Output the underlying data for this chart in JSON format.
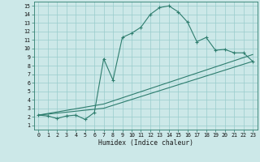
{
  "xlabel": "Humidex (Indice chaleur)",
  "bg_color": "#cce8e8",
  "line_color": "#2e7d6e",
  "grid_color": "#99cccc",
  "xlim": [
    -0.5,
    23.5
  ],
  "ylim": [
    0.5,
    15.5
  ],
  "xticks": [
    0,
    1,
    2,
    3,
    4,
    5,
    6,
    7,
    8,
    9,
    10,
    11,
    12,
    13,
    14,
    15,
    16,
    17,
    18,
    19,
    20,
    21,
    22,
    23
  ],
  "yticks": [
    1,
    2,
    3,
    4,
    5,
    6,
    7,
    8,
    9,
    10,
    11,
    12,
    13,
    14,
    15
  ],
  "curve1_x": [
    0,
    1,
    2,
    3,
    4,
    5,
    6,
    7,
    8,
    9,
    10,
    11,
    12,
    13,
    14,
    15,
    16,
    17,
    18,
    19,
    20,
    21,
    22,
    23
  ],
  "curve1_y": [
    2.2,
    2.1,
    1.8,
    2.1,
    2.2,
    1.7,
    2.5,
    8.8,
    6.3,
    11.3,
    11.8,
    12.5,
    14.0,
    14.8,
    15.0,
    14.3,
    13.1,
    10.8,
    11.3,
    9.8,
    9.9,
    9.5,
    9.5,
    8.5
  ],
  "curve2_x": [
    0,
    7,
    23
  ],
  "curve2_y": [
    2.2,
    3.5,
    9.3
  ],
  "curve3_x": [
    0,
    7,
    23
  ],
  "curve3_y": [
    2.2,
    3.0,
    8.5
  ],
  "line_lw": 0.8,
  "marker_size": 3.0,
  "tick_fontsize": 4.8,
  "xlabel_fontsize": 5.8
}
